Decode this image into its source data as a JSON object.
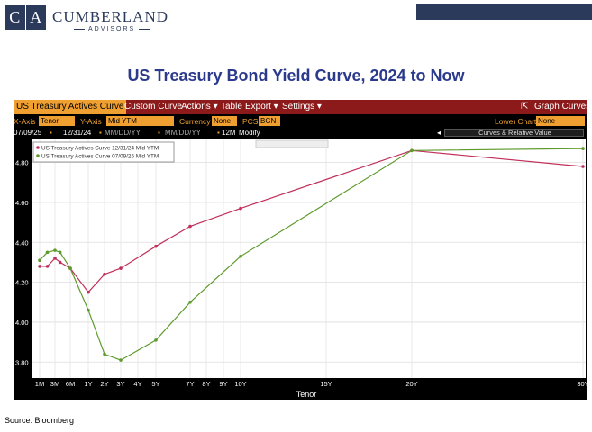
{
  "header": {
    "logo_letters": [
      "C",
      "A"
    ],
    "brand_name": "CUMBERLAND",
    "brand_sub": "ADVISORS"
  },
  "page_title": "US Treasury Bond Yield Curve, 2024 to Now",
  "terminal": {
    "menu": {
      "items": [
        "US Treasury Actives Curve",
        "Custom Curve",
        "Actions ▾",
        "Table",
        "Export ▾",
        "Settings ▾"
      ],
      "graph_curves": "Graph Curves"
    },
    "controls": {
      "x_axis_label": "X-Axis",
      "x_axis_value": "Tenor",
      "y_axis_label": "Y-Axis",
      "y_axis_value": "Mid YTM",
      "currency_label": "Currency",
      "currency_value": "None",
      "pcs_label": "PCS",
      "pcs_value": "BGN",
      "lower_chart_label": "Lower Chart",
      "lower_chart_value": "None"
    },
    "dates": {
      "date1": "07/09/25",
      "date2": "12/31/24",
      "placeholder1": "MM/DD/YY",
      "placeholder2": "MM/DD/YY",
      "range": "12M",
      "modify": "Modify",
      "curves_relative": "Curves & Relative Value"
    }
  },
  "chart_data": {
    "type": "line",
    "xlabel": "Tenor",
    "x_ticks": [
      "1M",
      "3M",
      "6M",
      "1Y",
      "2Y",
      "3Y",
      "4Y",
      "5Y",
      "7Y",
      "8Y",
      "9Y",
      "10Y",
      "15Y",
      "20Y",
      "30Y"
    ],
    "x_tick_years": [
      0.0833,
      0.25,
      0.5,
      1,
      2,
      3,
      4,
      5,
      7,
      8,
      9,
      10,
      15,
      20,
      30
    ],
    "y_ticks": [
      3.8,
      4.0,
      4.2,
      4.4,
      4.6,
      4.8
    ],
    "ylim": [
      3.72,
      4.92
    ],
    "grid": true,
    "legend_position": "top-left",
    "series": [
      {
        "name": "US Treasury Actives Curve 12/31/24 Mid YTM",
        "color": "#c0305a",
        "x": [
          0.0833,
          0.1667,
          0.25,
          0.3333,
          0.5,
          1,
          2,
          3,
          5,
          7,
          10,
          20,
          30
        ],
        "y": [
          4.28,
          4.28,
          4.32,
          4.3,
          4.27,
          4.15,
          4.24,
          4.27,
          4.38,
          4.48,
          4.57,
          4.86,
          4.78
        ]
      },
      {
        "name": "US Treasury Actives Curve 07/09/25 Mid YTM",
        "color": "#5e9a2c",
        "x": [
          0.0833,
          0.1667,
          0.25,
          0.3333,
          0.5,
          1,
          2,
          3,
          5,
          7,
          10,
          20,
          30
        ],
        "y": [
          4.31,
          4.35,
          4.36,
          4.35,
          4.27,
          4.06,
          3.84,
          3.81,
          3.91,
          4.1,
          4.33,
          4.86,
          4.87
        ]
      }
    ]
  },
  "source": "Source: Bloomberg"
}
